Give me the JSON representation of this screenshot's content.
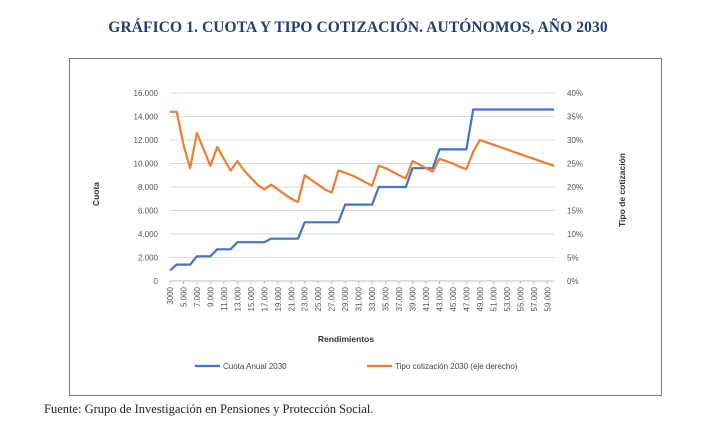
{
  "figure": {
    "title": "GRÁFICO 1. CUOTA Y TIPO COTIZACIÓN. AUTÓNOMOS, AÑO 2030",
    "source": "Fuente: Grupo de Investigación en Pensiones y Protección Social."
  },
  "chart_data": {
    "type": "line",
    "xlabel": "Rendimientos",
    "ylabel": "Cuota",
    "y2label": "Tipo de cotización",
    "ylim": [
      0,
      16000
    ],
    "y2lim": [
      0,
      40
    ],
    "yticks": [
      "0",
      "2.000",
      "4.000",
      "6.000",
      "8.000",
      "10.000",
      "12.000",
      "14.000",
      "16.000"
    ],
    "y2ticks": [
      "0%",
      "5%",
      "10%",
      "15%",
      "20%",
      "25%",
      "30%",
      "35%",
      "40%"
    ],
    "xticks": [
      "3000",
      "5.000",
      "7.000",
      "9.000",
      "11.000",
      "13.000",
      "15.000",
      "17.000",
      "19.000",
      "21.000",
      "23.000",
      "25.000",
      "27.000",
      "29.000",
      "31.000",
      "33.000",
      "35.000",
      "37.000",
      "39.000",
      "41.000",
      "43.000",
      "45.000",
      "47.000",
      "49.000",
      "51.000",
      "53.000",
      "55.000",
      "57.000",
      "59.000"
    ],
    "grid": true,
    "legend_position": "bottom",
    "colors": {
      "cuota": "#4472c4",
      "tipo": "#ed7d31"
    },
    "series": [
      {
        "name": "Cuota Anual 2030",
        "axis": "left",
        "x": [
          3000,
          4000,
          6000,
          7000,
          8000,
          9000,
          10000,
          11000,
          12000,
          13000,
          14000,
          17000,
          18000,
          22000,
          23000,
          28000,
          29000,
          33000,
          34000,
          38000,
          39000,
          42000,
          43000,
          47000,
          48000,
          60000
        ],
        "values": [
          900,
          1400,
          1400,
          2100,
          2100,
          2100,
          2700,
          2700,
          2700,
          3300,
          3300,
          3300,
          3600,
          3600,
          5000,
          5000,
          6500,
          6500,
          8000,
          8000,
          9600,
          9600,
          11200,
          11200,
          14600,
          14600
        ]
      },
      {
        "name": "Tipo cotización 2030 (eje derecho)",
        "axis": "right",
        "x": [
          3000,
          4000,
          5000,
          6000,
          7000,
          8000,
          9000,
          10000,
          11000,
          12000,
          13000,
          14000,
          15000,
          16000,
          17000,
          18000,
          19000,
          20000,
          21000,
          22000,
          23000,
          24000,
          25000,
          26000,
          27000,
          28000,
          29000,
          30000,
          31000,
          32000,
          33000,
          34000,
          35000,
          36000,
          37000,
          38000,
          39000,
          40000,
          41000,
          42000,
          43000,
          44000,
          45000,
          46000,
          47000,
          48000,
          49000,
          50000,
          51000,
          52000,
          53000,
          54000,
          55000,
          56000,
          57000,
          58000,
          59000,
          60000
        ],
        "values": [
          36,
          36,
          29,
          24,
          31.5,
          28,
          24.5,
          28.5,
          26,
          23.5,
          25.5,
          23.5,
          22,
          20.5,
          19.5,
          20.5,
          19.5,
          18.5,
          17.5,
          16.8,
          22.5,
          21.5,
          20.5,
          19.5,
          18.8,
          23.5,
          23,
          22.5,
          21.8,
          21,
          20.3,
          24.5,
          24,
          23.3,
          22.5,
          21.8,
          25.5,
          24.8,
          24,
          23.3,
          26,
          25.5,
          25,
          24.3,
          23.8,
          27.5,
          30,
          29.5,
          29,
          28.5,
          28,
          27.5,
          27,
          26.5,
          26,
          25.5,
          25,
          24.5
        ]
      }
    ]
  }
}
